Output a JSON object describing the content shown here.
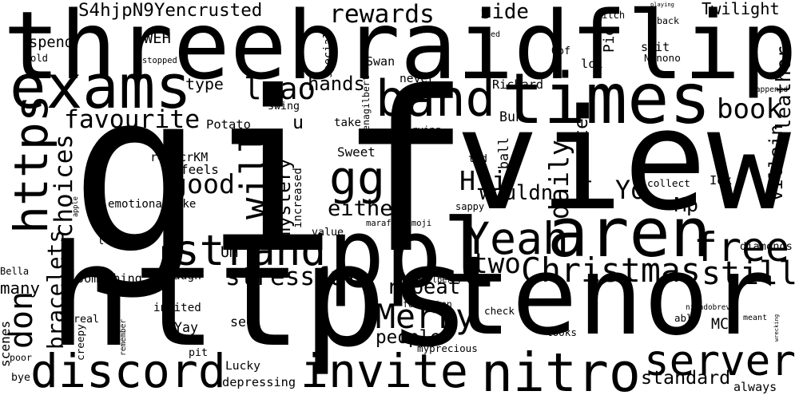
{
  "cloud": {
    "words": [
      "gif",
      "view",
      "https",
      "tenor",
      "threebraidflip",
      "https",
      "exams",
      "band",
      "times",
      "ppl",
      "aren",
      "strand",
      "discord",
      "invite",
      "nitro",
      "server",
      "free",
      "Christmas",
      "still",
      "gg",
      "will",
      "Merry",
      "Yeah",
      "book",
      "rewards",
      "stressful",
      "good",
      "favourite",
      "choices",
      "lmao",
      "daily",
      "separate",
      "bracelets",
      "don",
      "mystery",
      "standard",
      "S4hjpN9Yencrusted",
      "side",
      "Twilight",
      "leather",
      "villain",
      "people",
      "repeat",
      "two",
      "Hii",
      "wouldn",
      "either",
      "Yo",
      "Mp",
      "hands",
      "type",
      "spend",
      "WEH",
      "swing",
      "u",
      "take",
      "Potato",
      "r4rZcrKM",
      "feels",
      "emotionalDuke",
      "Sweet",
      "Swan",
      "Buh",
      "special",
      "many",
      "Bella",
      "scenes",
      "something",
      "laugh",
      "invited",
      "Yay",
      "see",
      "real",
      "Lucky",
      "bye",
      "depressing",
      "always",
      "meant",
      "diamonds",
      "wrecking",
      "MC",
      "able",
      "forgotten",
      "check",
      "Pixelberry",
      "marafrogemoji",
      "value",
      "now",
      "Um",
      "llike",
      "apple",
      "old",
      "stopped",
      "sed",
      "Oof",
      "lol",
      "witch",
      "playing",
      "back",
      "spit",
      "Nonono",
      "Pie",
      "never",
      "Richard",
      "happened",
      "crying",
      "elenagilbert",
      "tvd",
      "ball",
      "collect",
      "Idk",
      "increased",
      "sappy",
      "ninadobrev",
      "thevampirediaries",
      "remember",
      "creepy",
      "poor",
      "pit",
      "myprecious",
      "looks",
      "even"
    ]
  }
}
